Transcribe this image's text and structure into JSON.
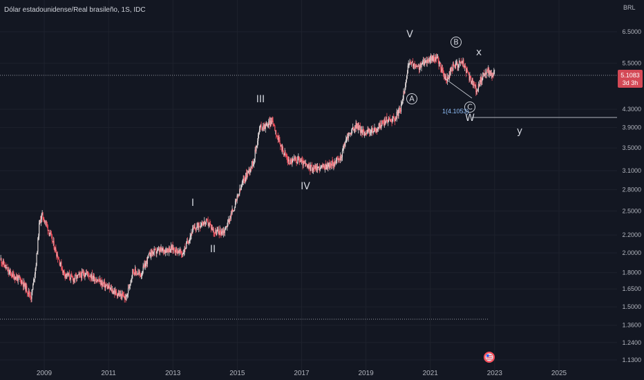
{
  "symbol_title": "Dólar estadounidense/Real brasileño, 1S, IDC",
  "price_badge": {
    "price": "5.1083",
    "countdown": "3d 3h"
  },
  "currency_label": "BRL",
  "fib_label": "1(4.1053)",
  "colors": {
    "background": "#131722",
    "up": "#26a69a",
    "down": "#ef5350",
    "candle_light": "#e0d8d8",
    "candle_red": "#f7525f",
    "badge": "#f7525f"
  },
  "chart_data": {
    "type": "candlestick",
    "title": "Dólar estadounidense/Real brasileño, 1S, IDC",
    "y_scale": "log",
    "ylim": [
      1.08,
      7.2
    ],
    "xlim": [
      2007.65,
      2026.9
    ],
    "y_ticks": [
      "6.5000",
      "5.5000",
      "4.3000",
      "3.9000",
      "3.5000",
      "3.1000",
      "2.8000",
      "2.5000",
      "2.2000",
      "2.0000",
      "1.8000",
      "1.6500",
      "1.5000",
      "1.3600",
      "1.2400",
      "1.1300"
    ],
    "x_ticks": [
      "2009",
      "2011",
      "2013",
      "2015",
      "2017",
      "2019",
      "2021",
      "2023",
      "2025"
    ],
    "price_path": [
      [
        2007.65,
        1.93
      ],
      [
        2007.9,
        1.8
      ],
      [
        2008.3,
        1.72
      ],
      [
        2008.6,
        1.58
      ],
      [
        2008.75,
        1.9
      ],
      [
        2008.85,
        2.35
      ],
      [
        2008.93,
        2.45
      ],
      [
        2009.1,
        2.3
      ],
      [
        2009.3,
        2.08
      ],
      [
        2009.6,
        1.8
      ],
      [
        2009.9,
        1.74
      ],
      [
        2010.3,
        1.8
      ],
      [
        2010.7,
        1.72
      ],
      [
        2011.2,
        1.62
      ],
      [
        2011.55,
        1.57
      ],
      [
        2011.75,
        1.82
      ],
      [
        2012.0,
        1.78
      ],
      [
        2012.3,
        2.0
      ],
      [
        2012.7,
        2.03
      ],
      [
        2013.0,
        2.05
      ],
      [
        2013.3,
        1.99
      ],
      [
        2013.6,
        2.25
      ],
      [
        2013.9,
        2.35
      ],
      [
        2014.1,
        2.35
      ],
      [
        2014.3,
        2.23
      ],
      [
        2014.6,
        2.25
      ],
      [
        2014.9,
        2.55
      ],
      [
        2015.2,
        2.95
      ],
      [
        2015.5,
        3.25
      ],
      [
        2015.7,
        3.9
      ],
      [
        2015.9,
        3.95
      ],
      [
        2016.1,
        4.05
      ],
      [
        2016.3,
        3.6
      ],
      [
        2016.6,
        3.25
      ],
      [
        2016.9,
        3.3
      ],
      [
        2017.2,
        3.15
      ],
      [
        2017.6,
        3.15
      ],
      [
        2017.9,
        3.2
      ],
      [
        2018.2,
        3.3
      ],
      [
        2018.4,
        3.7
      ],
      [
        2018.7,
        3.95
      ],
      [
        2018.9,
        3.8
      ],
      [
        2019.3,
        3.85
      ],
      [
        2019.6,
        4.05
      ],
      [
        2019.9,
        4.1
      ],
      [
        2020.1,
        4.35
      ],
      [
        2020.3,
        5.35
      ],
      [
        2020.4,
        5.5
      ],
      [
        2020.6,
        5.35
      ],
      [
        2020.9,
        5.6
      ],
      [
        2021.2,
        5.65
      ],
      [
        2021.5,
        5.0
      ],
      [
        2021.7,
        5.4
      ],
      [
        2022.0,
        5.55
      ],
      [
        2022.2,
        5.1
      ],
      [
        2022.45,
        4.75
      ],
      [
        2022.6,
        5.1
      ],
      [
        2022.8,
        5.3
      ],
      [
        2022.9,
        5.15
      ],
      [
        2023.0,
        5.23
      ]
    ]
  },
  "wave_labels": {
    "I": "I",
    "II": "II",
    "III": "III",
    "IV": "IV",
    "V": "V",
    "A": "A",
    "B": "B",
    "C": "C",
    "W": "W",
    "X": "x",
    "Y": "y"
  }
}
